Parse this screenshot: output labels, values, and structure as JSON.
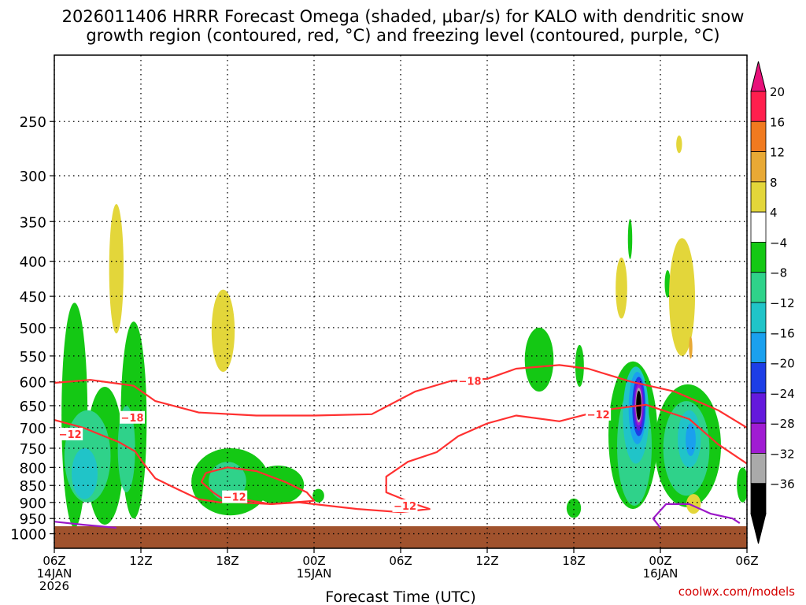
{
  "title_line1": "2026011406 HRRR Forecast Omega (shaded, μbar/s) for KALO with dendritic snow",
  "title_line2": "growth region (contoured, red, °C) and freezing level (contoured, purple, °C)",
  "watermark": "coolwx.com/models",
  "chart_data": {
    "type": "contour",
    "title": "2026011406 HRRR Forecast Omega (shaded, μbar/s) for KALO with dendritic snow growth region (contoured, red, °C) and freezing level (contoured, purple, °C)",
    "xlabel": "Forecast Time (UTC)",
    "ylabel": "",
    "xlim": [
      0,
      48
    ],
    "ylim": [
      1050,
      200
    ],
    "y_scale": "log-pressure",
    "grid": true,
    "x_ticks": [
      {
        "h": 0,
        "line1": "06Z",
        "line2": "14JAN",
        "line3": "2026"
      },
      {
        "h": 6,
        "line1": "12Z",
        "line2": "",
        "line3": ""
      },
      {
        "h": 12,
        "line1": "18Z",
        "line2": "",
        "line3": ""
      },
      {
        "h": 18,
        "line1": "00Z",
        "line2": "15JAN",
        "line3": ""
      },
      {
        "h": 24,
        "line1": "06Z",
        "line2": "",
        "line3": ""
      },
      {
        "h": 30,
        "line1": "12Z",
        "line2": "",
        "line3": ""
      },
      {
        "h": 36,
        "line1": "18Z",
        "line2": "",
        "line3": ""
      },
      {
        "h": 42,
        "line1": "00Z",
        "line2": "16JAN",
        "line3": ""
      },
      {
        "h": 48,
        "line1": "06Z",
        "line2": "",
        "line3": ""
      }
    ],
    "y_ticks": [
      "250",
      "300",
      "350",
      "400",
      "450",
      "500",
      "550",
      "600",
      "650",
      "700",
      "750",
      "800",
      "850",
      "900",
      "950",
      "1000"
    ],
    "colorbar": {
      "labels": [
        "20",
        "16",
        "12",
        "8",
        "4",
        "−4",
        "−8",
        "−12",
        "−16",
        "−20",
        "−24",
        "−28",
        "−32",
        "−36"
      ],
      "colors": [
        "#ff1f4d",
        "#f07a1f",
        "#e8a935",
        "#e3d63a",
        "#ffffff",
        "#14c814",
        "#2fd28a",
        "#20c4c8",
        "#1aa0ee",
        "#1d3ee6",
        "#6419dc",
        "#a01cd2",
        "#aaaaaa",
        "#000000"
      ],
      "top_color": "#e8107a",
      "bottom_color": "#000000"
    },
    "ground": {
      "color": "#a0522d",
      "pressure_top": 975
    },
    "contour_labels": [
      {
        "text": "−18",
        "h": 5.4,
        "p": 676,
        "color": "#ff3030"
      },
      {
        "text": "−18",
        "h": 28.8,
        "p": 598,
        "color": "#ff3030"
      },
      {
        "text": "−12",
        "h": 1.1,
        "p": 715,
        "color": "#ff3030"
      },
      {
        "text": "−12",
        "h": 12.5,
        "p": 883,
        "color": "#ff3030"
      },
      {
        "text": "−12",
        "h": 24.3,
        "p": 910,
        "color": "#ff3030"
      },
      {
        "text": "−12",
        "h": 37.7,
        "p": 669,
        "color": "#ff3030"
      }
    ],
    "contours": [
      {
        "name": "-18C",
        "color": "#ff3030",
        "points": [
          [
            0,
            602
          ],
          [
            2.5,
            596
          ],
          [
            5.5,
            608
          ],
          [
            7,
            640
          ],
          [
            10,
            665
          ],
          [
            14,
            672
          ],
          [
            18,
            672
          ],
          [
            22,
            669
          ],
          [
            25,
            620
          ],
          [
            27.5,
            598
          ],
          [
            30,
            594
          ],
          [
            32,
            574
          ],
          [
            35,
            567
          ],
          [
            37,
            574
          ],
          [
            40,
            600
          ],
          [
            43,
            620
          ],
          [
            46,
            660
          ],
          [
            48,
            700
          ]
        ]
      },
      {
        "name": "-12C",
        "color": "#ff3030",
        "points": [
          [
            0,
            682
          ],
          [
            2,
            700
          ],
          [
            4.5,
            735
          ],
          [
            5.6,
            758
          ],
          [
            6.2,
            790
          ],
          [
            7,
            830
          ],
          [
            8.5,
            860
          ],
          [
            10,
            890
          ],
          [
            11.5,
            900
          ],
          [
            13,
            890
          ],
          [
            15,
            905
          ],
          [
            17,
            900
          ],
          [
            19,
            910
          ],
          [
            21,
            920
          ],
          [
            24,
            930
          ],
          [
            26,
            920
          ],
          [
            25,
            905
          ],
          [
            23,
            870
          ],
          [
            23,
            825
          ],
          [
            24.5,
            785
          ],
          [
            26.5,
            760
          ],
          [
            28,
            720
          ],
          [
            30,
            690
          ],
          [
            32,
            672
          ],
          [
            35,
            685
          ],
          [
            38,
            660
          ],
          [
            41,
            648
          ],
          [
            44,
            680
          ],
          [
            46,
            740
          ],
          [
            48,
            790
          ]
        ]
      },
      {
        "name": "-12C-loop",
        "color": "#ff3030",
        "points": [
          [
            10.5,
            815
          ],
          [
            12,
            800
          ],
          [
            14,
            810
          ],
          [
            16,
            840
          ],
          [
            17.5,
            870
          ],
          [
            18,
            895
          ],
          [
            15,
            905
          ],
          [
            12,
            898
          ],
          [
            11,
            870
          ],
          [
            10.2,
            840
          ],
          [
            10.5,
            815
          ]
        ]
      },
      {
        "name": "freezing-level-1",
        "color": "#9b17c8",
        "points": [
          [
            0,
            960
          ],
          [
            2,
            970
          ],
          [
            4.3,
            980
          ]
        ]
      },
      {
        "name": "freezing-level-2",
        "color": "#9b17c8",
        "points": [
          [
            42,
            980
          ],
          [
            41.5,
            950
          ],
          [
            42.4,
            905
          ],
          [
            44,
            905
          ],
          [
            45.5,
            935
          ],
          [
            47,
            950
          ],
          [
            47.5,
            965
          ]
        ]
      }
    ],
    "shaded_regions": [
      {
        "level": "-4",
        "color": "#14c814",
        "center": [
          1.4,
          720
        ],
        "span": [
          0.9,
          260
        ]
      },
      {
        "level": "-4",
        "color": "#14c814",
        "center": [
          3.5,
          790
        ],
        "span": [
          1.3,
          180
        ]
      },
      {
        "level": "-4",
        "color": "#14c814",
        "center": [
          5.5,
          720
        ],
        "span": [
          0.9,
          230
        ]
      },
      {
        "level": "-4",
        "color": "#14c814",
        "center": [
          12.2,
          845
        ],
        "span": [
          2.7,
          95
        ]
      },
      {
        "level": "-4",
        "color": "#14c814",
        "center": [
          15.5,
          850
        ],
        "span": [
          1.8,
          55
        ]
      },
      {
        "level": "-4",
        "color": "#14c814",
        "center": [
          18.3,
          880
        ],
        "span": [
          0.4,
          20
        ]
      },
      {
        "level": "-4",
        "color": "#14c814",
        "center": [
          33.6,
          560
        ],
        "span": [
          1.0,
          60
        ]
      },
      {
        "level": "-4",
        "color": "#14c814",
        "center": [
          36.4,
          570
        ],
        "span": [
          0.3,
          40
        ]
      },
      {
        "level": "-4",
        "color": "#14c814",
        "center": [
          36.0,
          918
        ],
        "span": [
          0.5,
          30
        ]
      },
      {
        "level": "-4",
        "color": "#14c814",
        "center": [
          39.9,
          372
        ],
        "span": [
          0.15,
          25
        ]
      },
      {
        "level": "-4",
        "color": "#14c814",
        "center": [
          42.5,
          432
        ],
        "span": [
          0.2,
          20
        ]
      },
      {
        "level": "-4",
        "color": "#14c814",
        "center": [
          40.1,
          740
        ],
        "span": [
          1.7,
          180
        ]
      },
      {
        "level": "-4",
        "color": "#14c814",
        "center": [
          43.9,
          760
        ],
        "span": [
          2.3,
          155
        ]
      },
      {
        "level": "-4",
        "color": "#14c814",
        "center": [
          47.7,
          850
        ],
        "span": [
          0.4,
          50
        ]
      },
      {
        "level": "-8",
        "color": "#2fd28a",
        "center": [
          2.3,
          780
        ],
        "span": [
          1.6,
          120
        ]
      },
      {
        "level": "-8",
        "color": "#2fd28a",
        "center": [
          5.0,
          760
        ],
        "span": [
          0.6,
          110
        ]
      },
      {
        "level": "-8",
        "color": "#2fd28a",
        "center": [
          12.0,
          840
        ],
        "span": [
          1.3,
          55
        ]
      },
      {
        "level": "-8",
        "color": "#2fd28a",
        "center": [
          40.2,
          760
        ],
        "span": [
          1.2,
          150
        ]
      },
      {
        "level": "-8",
        "color": "#2fd28a",
        "center": [
          43.8,
          760
        ],
        "span": [
          1.6,
          120
        ]
      },
      {
        "level": "-12",
        "color": "#20c4c8",
        "center": [
          2.1,
          820
        ],
        "span": [
          0.9,
          70
        ]
      },
      {
        "level": "-12",
        "color": "#20c4c8",
        "center": [
          40.3,
          680
        ],
        "span": [
          0.9,
          110
        ]
      },
      {
        "level": "-12",
        "color": "#20c4c8",
        "center": [
          44.0,
          730
        ],
        "span": [
          0.8,
          70
        ]
      },
      {
        "level": "-16",
        "color": "#1aa0ee",
        "center": [
          40.4,
          660
        ],
        "span": [
          0.6,
          80
        ]
      },
      {
        "level": "-16",
        "color": "#1aa0ee",
        "center": [
          44.1,
          730
        ],
        "span": [
          0.35,
          40
        ]
      },
      {
        "level": "-20",
        "color": "#1d3ee6",
        "center": [
          40.5,
          655
        ],
        "span": [
          0.45,
          65
        ]
      },
      {
        "level": "-24",
        "color": "#6419dc",
        "center": [
          40.5,
          652
        ],
        "span": [
          0.35,
          55
        ]
      },
      {
        "level": "-28",
        "color": "#a01cd2",
        "center": [
          40.5,
          650
        ],
        "span": [
          0.28,
          45
        ]
      },
      {
        "level": "-32",
        "color": "#aaaaaa",
        "center": [
          40.5,
          650
        ],
        "span": [
          0.22,
          38
        ]
      },
      {
        "level": "-36",
        "color": "#000000",
        "center": [
          40.5,
          650
        ],
        "span": [
          0.18,
          32
        ]
      },
      {
        "level": "4",
        "color": "#e3d63a",
        "center": [
          4.3,
          420
        ],
        "span": [
          0.5,
          90
        ]
      },
      {
        "level": "4",
        "color": "#e3d63a",
        "center": [
          11.7,
          510
        ],
        "span": [
          0.8,
          70
        ]
      },
      {
        "level": "4",
        "color": "#e3d63a",
        "center": [
          39.3,
          440
        ],
        "span": [
          0.4,
          45
        ]
      },
      {
        "level": "4",
        "color": "#e3d63a",
        "center": [
          43.5,
          460
        ],
        "span": [
          0.9,
          90
        ]
      },
      {
        "level": "4",
        "color": "#e3d63a",
        "center": [
          43.3,
          270
        ],
        "span": [
          0.2,
          8
        ]
      },
      {
        "level": "4",
        "color": "#e3d63a",
        "center": [
          44.3,
          905
        ],
        "span": [
          0.5,
          30
        ]
      },
      {
        "level": "8",
        "color": "#e8a935",
        "center": [
          44.1,
          535
        ],
        "span": [
          0.12,
          20
        ]
      }
    ]
  }
}
